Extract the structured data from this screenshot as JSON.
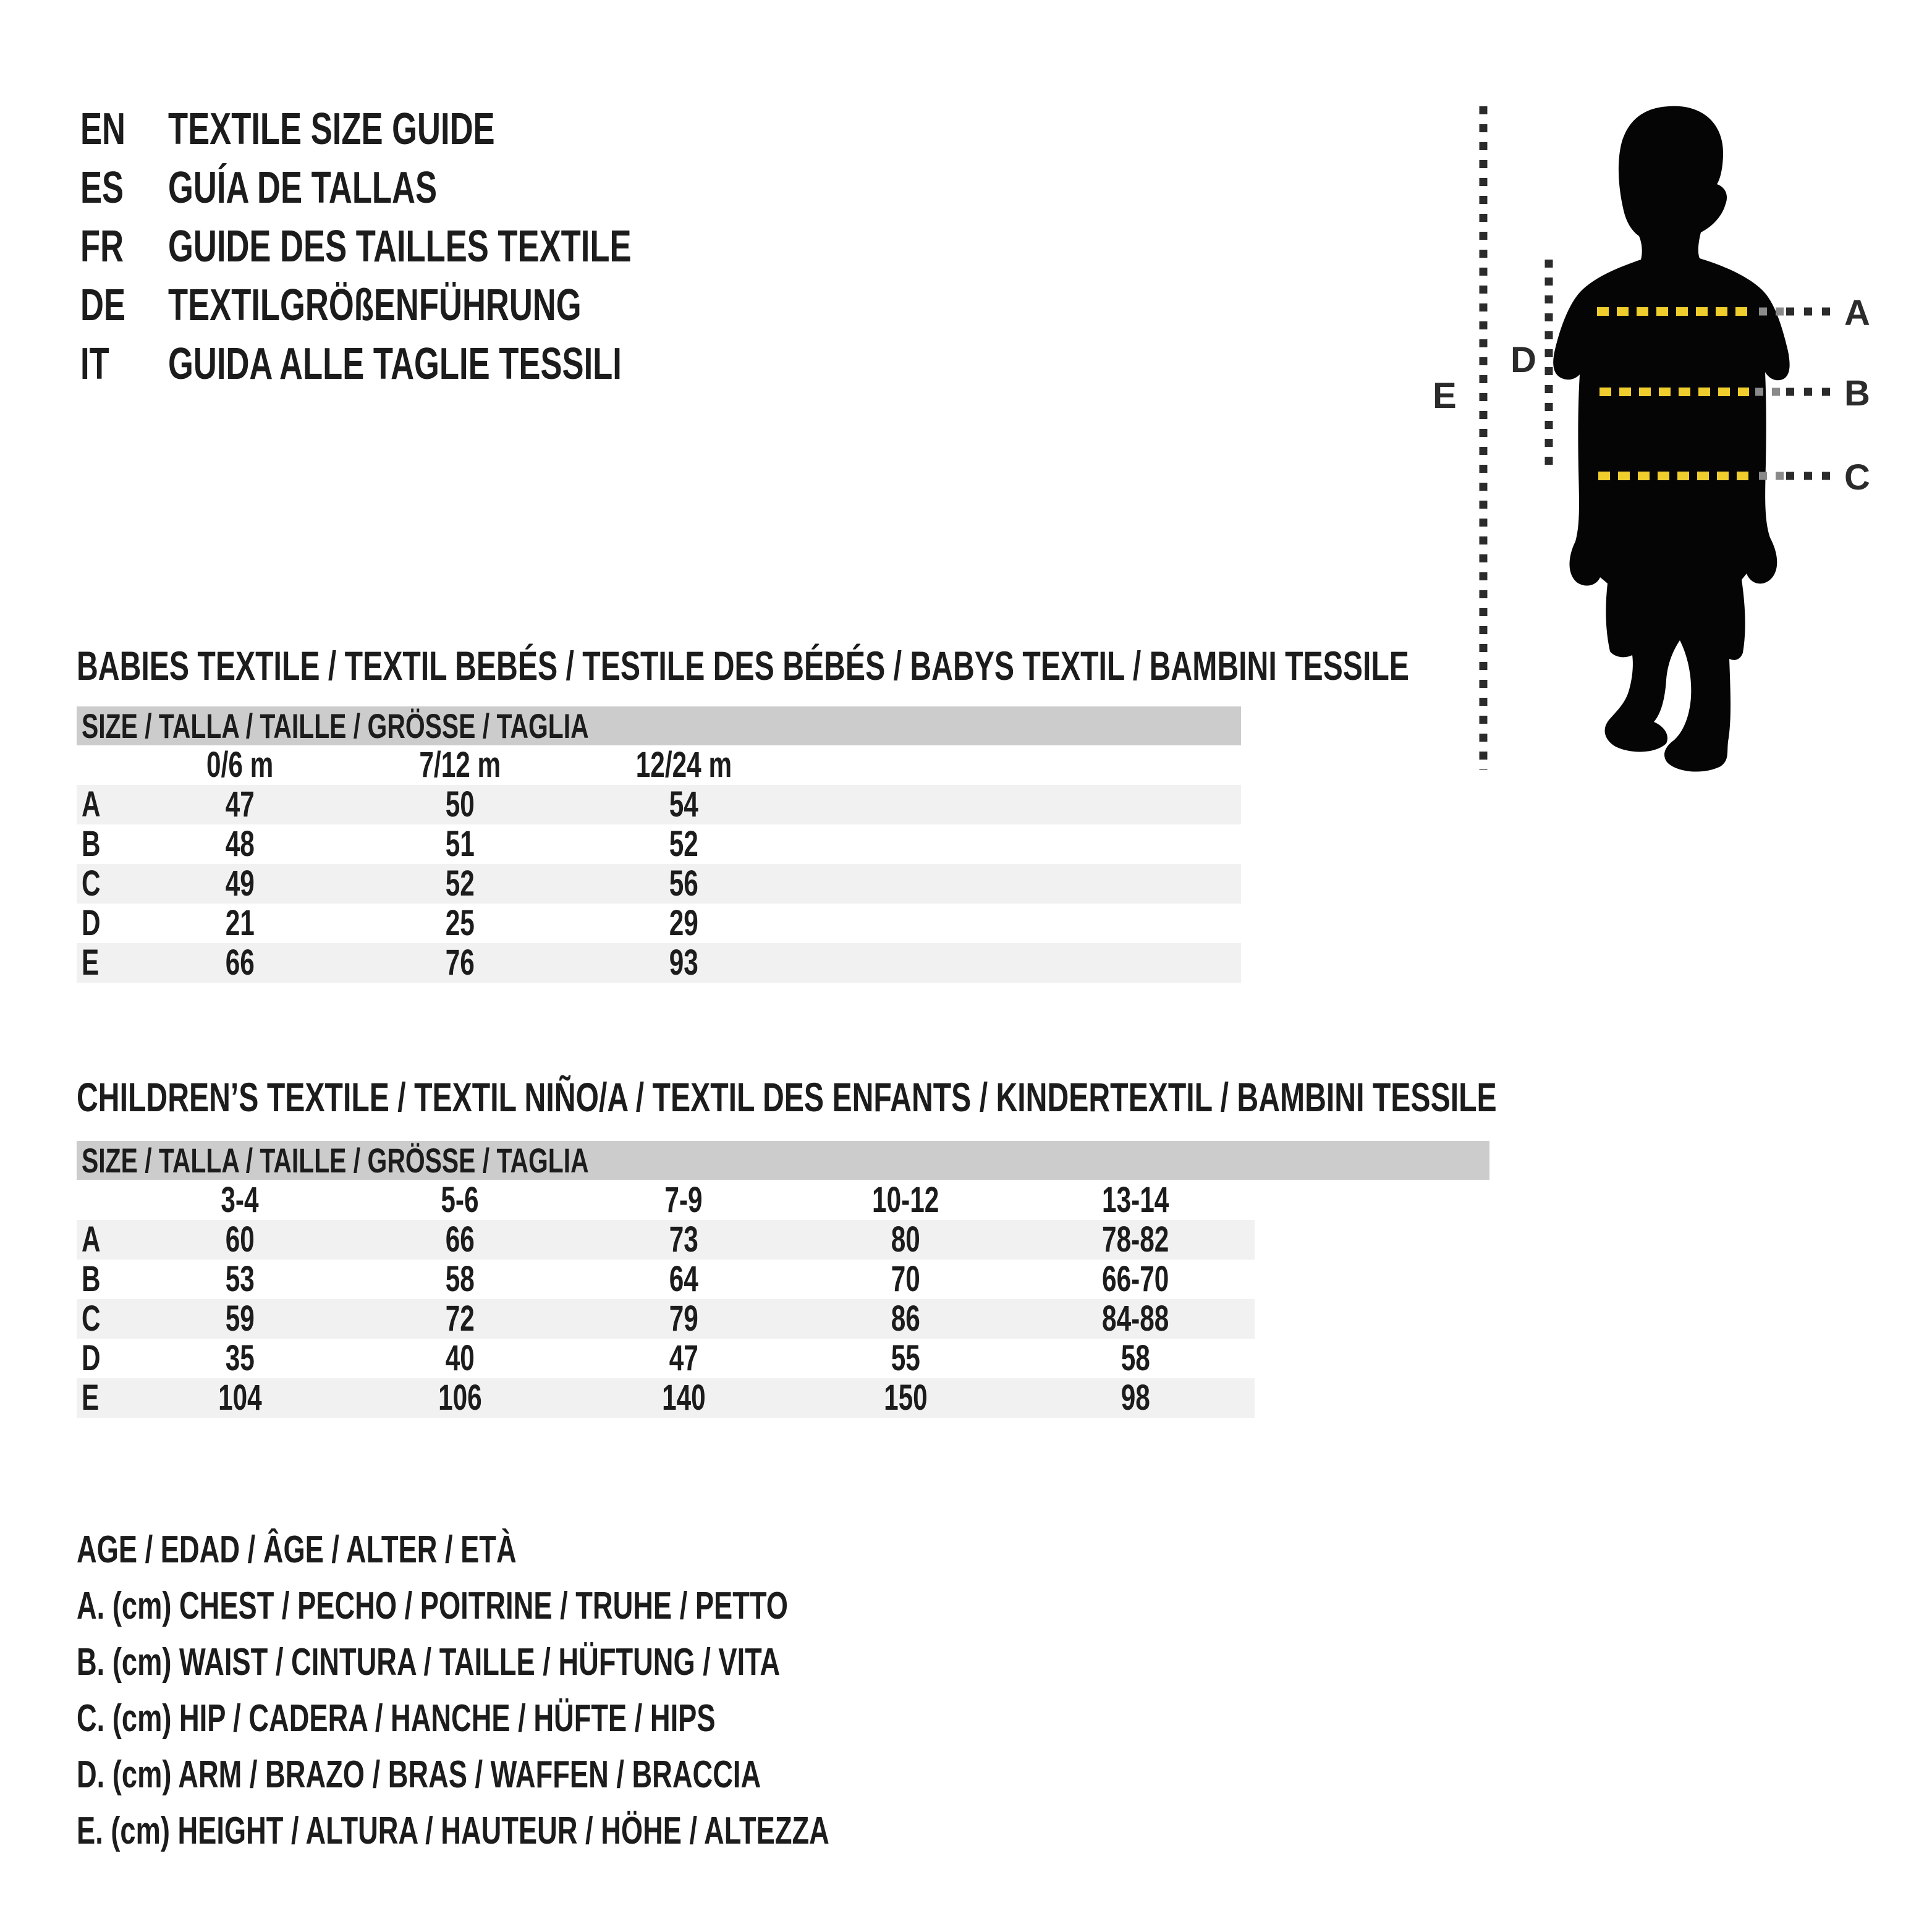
{
  "header": {
    "languages": [
      {
        "code": "EN",
        "title": "TEXTILE SIZE GUIDE"
      },
      {
        "code": "ES",
        "title": "GUÍA DE TALLAS"
      },
      {
        "code": "FR",
        "title": "GUIDE DES TAILLES TEXTILE"
      },
      {
        "code": "DE",
        "title": "TEXTILGRÖßENFÜHRUNG"
      },
      {
        "code": "IT",
        "title": "GUIDA ALLE TAGLIE TESSILI"
      }
    ]
  },
  "figure": {
    "labels": {
      "a": "A",
      "b": "B",
      "c": "C",
      "d": "D",
      "e": "E"
    }
  },
  "babies": {
    "title": "BABIES TEXTILE / TEXTIL BEBÉS / TESTILE DES BÉBÉS / BABYS TEXTIL / BAMBINI TESSILE",
    "size_header": "SIZE / TALLA / TAILLE / GRÖSSE / TAGLIA",
    "columns": [
      "0/6 m",
      "7/12 m",
      "12/24 m"
    ],
    "rows": [
      {
        "label": "A",
        "values": [
          "47",
          "50",
          "54"
        ]
      },
      {
        "label": "B",
        "values": [
          "48",
          "51",
          "52"
        ]
      },
      {
        "label": "C",
        "values": [
          "49",
          "52",
          "56"
        ]
      },
      {
        "label": "D",
        "values": [
          "21",
          "25",
          "29"
        ]
      },
      {
        "label": "E",
        "values": [
          "66",
          "76",
          "93"
        ]
      }
    ]
  },
  "children": {
    "title": "CHILDREN’S TEXTILE / TEXTIL NIÑO/A / TEXTIL DES ENFANTS / KINDERTEXTIL / BAMBINI TESSILE",
    "size_header": "SIZE / TALLA / TAILLE / GRÖSSE / TAGLIA",
    "columns": [
      "3-4",
      "5-6",
      "7-9",
      "10-12",
      "13-14"
    ],
    "rows": [
      {
        "label": "A",
        "values": [
          "60",
          "66",
          "73",
          "80",
          "78-82"
        ]
      },
      {
        "label": "B",
        "values": [
          "53",
          "58",
          "64",
          "70",
          "66-70"
        ]
      },
      {
        "label": "C",
        "values": [
          "59",
          "72",
          "79",
          "86",
          "84-88"
        ]
      },
      {
        "label": "D",
        "values": [
          "35",
          "40",
          "47",
          "55",
          "58"
        ]
      },
      {
        "label": "E",
        "values": [
          "104",
          "106",
          "140",
          "150",
          "98"
        ]
      }
    ]
  },
  "legend": {
    "lines": [
      "AGE / EDAD / ÂGE / ALTER / ETÀ",
      "A. (cm) CHEST / PECHO / POITRINE / TRUHE / PETTO",
      "B. (cm) WAIST / CINTURA / TAILLE / HÜFTUNG / VITA",
      "C. (cm) HIP / CADERA / HANCHE / HÜFTE / HIPS",
      "D. (cm) ARM / BRAZO / BRAS / WAFFEN / BRACCIA",
      "E. (cm) HEIGHT / ALTURA / HAUTEUR / HÖHE / ALTEZZA"
    ]
  },
  "colors": {
    "text": "#1c1c1c",
    "silhouette": "#050505",
    "accent_yellow": "#eecd2d",
    "dash_dark": "#2b2b2b",
    "dash_grey": "#8a8a8a",
    "bar_grey": "#cccccc",
    "stripe_grey": "#f1f1f1"
  }
}
